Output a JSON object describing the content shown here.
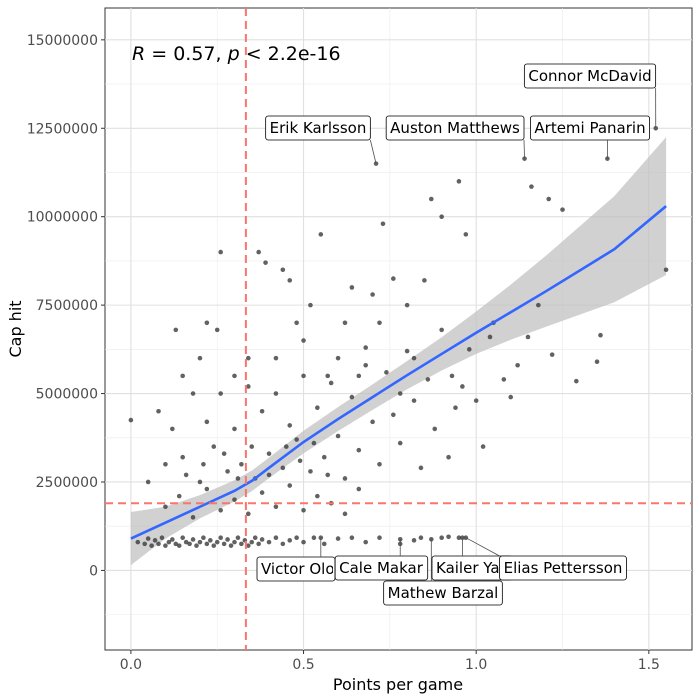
{
  "chart_data": {
    "type": "scatter",
    "xlabel": "Points per game",
    "ylabel": "Cap hit",
    "xlim": [
      -0.075,
      1.625
    ],
    "ylim": [
      -2250000,
      15900000
    ],
    "x_ticks": [
      0.0,
      0.5,
      1.0,
      1.5
    ],
    "x_tick_labels": [
      "0.0",
      "0.5",
      "1.0",
      "1.5"
    ],
    "y_ticks": [
      0,
      2500000,
      5000000,
      7500000,
      10000000,
      12500000,
      15000000
    ],
    "y_tick_labels": [
      "0",
      "2500000",
      "5000000",
      "7500000",
      "10000000",
      "12500000",
      "15000000"
    ],
    "grid": true,
    "stat_annotation": {
      "r_symbol": "R",
      "r_text": " = 0.57, ",
      "p_symbol": "p",
      "p_text": " < 2.2e-16"
    },
    "reference_lines": {
      "vertical_x": 0.333,
      "horizontal_y": 1900000,
      "color": "#f8766d"
    },
    "fit_line": {
      "color": "#3366ff",
      "band_color": "#bdbdbd",
      "points": [
        [
          0.0,
          900000,
          750000
        ],
        [
          0.1,
          1350000,
          450000
        ],
        [
          0.2,
          1800000,
          330000
        ],
        [
          0.3,
          2250000,
          300000
        ],
        [
          0.35,
          2530000,
          290000
        ],
        [
          0.4,
          2900000,
          290000
        ],
        [
          0.5,
          3630000,
          320000
        ],
        [
          0.6,
          4280000,
          340000
        ],
        [
          0.7,
          4900000,
          360000
        ],
        [
          0.8,
          5520000,
          400000
        ],
        [
          0.9,
          6120000,
          470000
        ],
        [
          1.0,
          6720000,
          600000
        ],
        [
          1.1,
          7300000,
          780000
        ],
        [
          1.2,
          7880000,
          1000000
        ],
        [
          1.3,
          8480000,
          1250000
        ],
        [
          1.4,
          9080000,
          1500000
        ],
        [
          1.55,
          10300000,
          1950000
        ]
      ]
    },
    "labeled_players": [
      {
        "name": "Connor McDavid",
        "x": 1.52,
        "y": 12500000
      },
      {
        "name": "Erik Karlsson",
        "x": 0.71,
        "y": 11500000
      },
      {
        "name": "Auston Matthews",
        "x": 1.14,
        "y": 11640000
      },
      {
        "name": "Artemi Panarin",
        "x": 1.38,
        "y": 11640000
      },
      {
        "name": "Victor Olofsson",
        "x": 0.55,
        "y": 925000
      },
      {
        "name": "Cale Makar",
        "x": 0.78,
        "y": 880000
      },
      {
        "name": "Kailer Yamamoto",
        "x": 0.96,
        "y": 925000
      },
      {
        "name": "Elias Pettersson",
        "x": 0.97,
        "y": 925000
      },
      {
        "name": "Mathew Barzal",
        "x": 0.87,
        "y": 880000
      }
    ],
    "point_color": "#3b3b3b",
    "points": [
      [
        1.55,
        8500000
      ],
      [
        1.36,
        6650000
      ],
      [
        1.35,
        5900000
      ],
      [
        1.29,
        5350000
      ],
      [
        1.25,
        10200000
      ],
      [
        1.22,
        6100000
      ],
      [
        1.21,
        10500000
      ],
      [
        1.16,
        10850000
      ],
      [
        1.18,
        7500000
      ],
      [
        1.15,
        6600000
      ],
      [
        1.12,
        5800000
      ],
      [
        1.05,
        7000000
      ],
      [
        1.02,
        3500000
      ],
      [
        0.98,
        6250000
      ],
      [
        0.97,
        9500000
      ],
      [
        0.95,
        11000000
      ],
      [
        0.93,
        5500000
      ],
      [
        0.9,
        10000000
      ],
      [
        0.87,
        10500000
      ],
      [
        0.85,
        8200000
      ],
      [
        0.82,
        6000000
      ],
      [
        0.8,
        7500000
      ],
      [
        0.78,
        5000000
      ],
      [
        0.76,
        8250000
      ],
      [
        0.73,
        9800000
      ],
      [
        0.72,
        7000000
      ],
      [
        0.7,
        7800000
      ],
      [
        0.68,
        6300000
      ],
      [
        0.66,
        5500000
      ],
      [
        0.64,
        8000000
      ],
      [
        0.62,
        7000000
      ],
      [
        0.6,
        6000000
      ],
      [
        0.57,
        5500000
      ],
      [
        0.55,
        9500000
      ],
      [
        0.52,
        7500000
      ],
      [
        0.5,
        6500000
      ],
      [
        0.48,
        7000000
      ],
      [
        0.46,
        8200000
      ],
      [
        0.44,
        8500000
      ],
      [
        0.42,
        6000000
      ],
      [
        0.39,
        8700000
      ],
      [
        0.37,
        9000000
      ],
      [
        0.34,
        6000000
      ],
      [
        0.3,
        5500000
      ],
      [
        0.26,
        9000000
      ],
      [
        0.25,
        6800000
      ],
      [
        0.22,
        7000000
      ],
      [
        0.2,
        6000000
      ],
      [
        0.15,
        5500000
      ],
      [
        0.13,
        6800000
      ],
      [
        0.08,
        4500000
      ],
      [
        0.0,
        4250000
      ],
      [
        0.05,
        2500000
      ],
      [
        0.1,
        3000000
      ],
      [
        0.12,
        4000000
      ],
      [
        0.15,
        3200000
      ],
      [
        0.18,
        5000000
      ],
      [
        0.2,
        2500000
      ],
      [
        0.22,
        4200000
      ],
      [
        0.24,
        3500000
      ],
      [
        0.26,
        5000000
      ],
      [
        0.28,
        2800000
      ],
      [
        0.3,
        4000000
      ],
      [
        0.32,
        3000000
      ],
      [
        0.34,
        5200000
      ],
      [
        0.36,
        2600000
      ],
      [
        0.38,
        4500000
      ],
      [
        0.4,
        3300000
      ],
      [
        0.42,
        5000000
      ],
      [
        0.44,
        2900000
      ],
      [
        0.46,
        4100000
      ],
      [
        0.48,
        3700000
      ],
      [
        0.5,
        5500000
      ],
      [
        0.52,
        2800000
      ],
      [
        0.54,
        4600000
      ],
      [
        0.56,
        3200000
      ],
      [
        0.58,
        5300000
      ],
      [
        0.6,
        3800000
      ],
      [
        0.62,
        2600000
      ],
      [
        0.64,
        4900000
      ],
      [
        0.66,
        3400000
      ],
      [
        0.68,
        5800000
      ],
      [
        0.7,
        4200000
      ],
      [
        0.72,
        3000000
      ],
      [
        0.74,
        5600000
      ],
      [
        0.76,
        4400000
      ],
      [
        0.78,
        3600000
      ],
      [
        0.8,
        6200000
      ],
      [
        0.82,
        4800000
      ],
      [
        0.84,
        2900000
      ],
      [
        0.86,
        5400000
      ],
      [
        0.88,
        4000000
      ],
      [
        0.9,
        6800000
      ],
      [
        0.92,
        3200000
      ],
      [
        0.94,
        4600000
      ],
      [
        0.96,
        5200000
      ],
      [
        1.0,
        4800000
      ],
      [
        1.04,
        6600000
      ],
      [
        1.08,
        5400000
      ],
      [
        1.1,
        4900000
      ],
      [
        0.1,
        1800000
      ],
      [
        0.14,
        2100000
      ],
      [
        0.18,
        1500000
      ],
      [
        0.22,
        2300000
      ],
      [
        0.26,
        1700000
      ],
      [
        0.3,
        2000000
      ],
      [
        0.34,
        1600000
      ],
      [
        0.38,
        2200000
      ],
      [
        0.42,
        1800000
      ],
      [
        0.46,
        2400000
      ],
      [
        0.5,
        1700000
      ],
      [
        0.54,
        2100000
      ],
      [
        0.58,
        1900000
      ],
      [
        0.62,
        1600000
      ],
      [
        0.66,
        2300000
      ],
      [
        0.16,
        2700000
      ],
      [
        0.21,
        3000000
      ],
      [
        0.27,
        3300000
      ],
      [
        0.31,
        2600000
      ],
      [
        0.35,
        3500000
      ],
      [
        0.4,
        2700000
      ],
      [
        0.45,
        3500000
      ],
      [
        0.49,
        3100000
      ],
      [
        0.53,
        3600000
      ],
      [
        0.57,
        2700000
      ],
      [
        0.02,
        800000
      ],
      [
        0.04,
        750000
      ],
      [
        0.05,
        900000
      ],
      [
        0.06,
        700000
      ],
      [
        0.07,
        850000
      ],
      [
        0.08,
        750000
      ],
      [
        0.09,
        925000
      ],
      [
        0.1,
        700000
      ],
      [
        0.11,
        800000
      ],
      [
        0.12,
        875000
      ],
      [
        0.13,
        750000
      ],
      [
        0.14,
        700000
      ],
      [
        0.15,
        925000
      ],
      [
        0.16,
        800000
      ],
      [
        0.17,
        750000
      ],
      [
        0.18,
        875000
      ],
      [
        0.19,
        700000
      ],
      [
        0.2,
        800000
      ],
      [
        0.21,
        925000
      ],
      [
        0.22,
        750000
      ],
      [
        0.23,
        850000
      ],
      [
        0.24,
        700000
      ],
      [
        0.25,
        800000
      ],
      [
        0.26,
        925000
      ],
      [
        0.27,
        750000
      ],
      [
        0.28,
        875000
      ],
      [
        0.29,
        700000
      ],
      [
        0.3,
        800000
      ],
      [
        0.31,
        925000
      ],
      [
        0.32,
        750000
      ],
      [
        0.33,
        850000
      ],
      [
        0.34,
        700000
      ],
      [
        0.35,
        800000
      ],
      [
        0.36,
        925000
      ],
      [
        0.37,
        750000
      ],
      [
        0.38,
        875000
      ],
      [
        0.4,
        800000
      ],
      [
        0.42,
        925000
      ],
      [
        0.44,
        750000
      ],
      [
        0.46,
        850000
      ],
      [
        0.48,
        925000
      ],
      [
        0.5,
        800000
      ],
      [
        0.53,
        925000
      ],
      [
        0.56,
        750000
      ],
      [
        0.6,
        900000
      ],
      [
        0.64,
        925000
      ],
      [
        0.68,
        800000
      ],
      [
        0.72,
        925000
      ],
      [
        0.78,
        750000
      ],
      [
        0.82,
        850000
      ],
      [
        0.84,
        925000
      ],
      [
        0.9,
        925000
      ],
      [
        0.92,
        950000
      ],
      [
        0.95,
        925000
      ]
    ]
  }
}
